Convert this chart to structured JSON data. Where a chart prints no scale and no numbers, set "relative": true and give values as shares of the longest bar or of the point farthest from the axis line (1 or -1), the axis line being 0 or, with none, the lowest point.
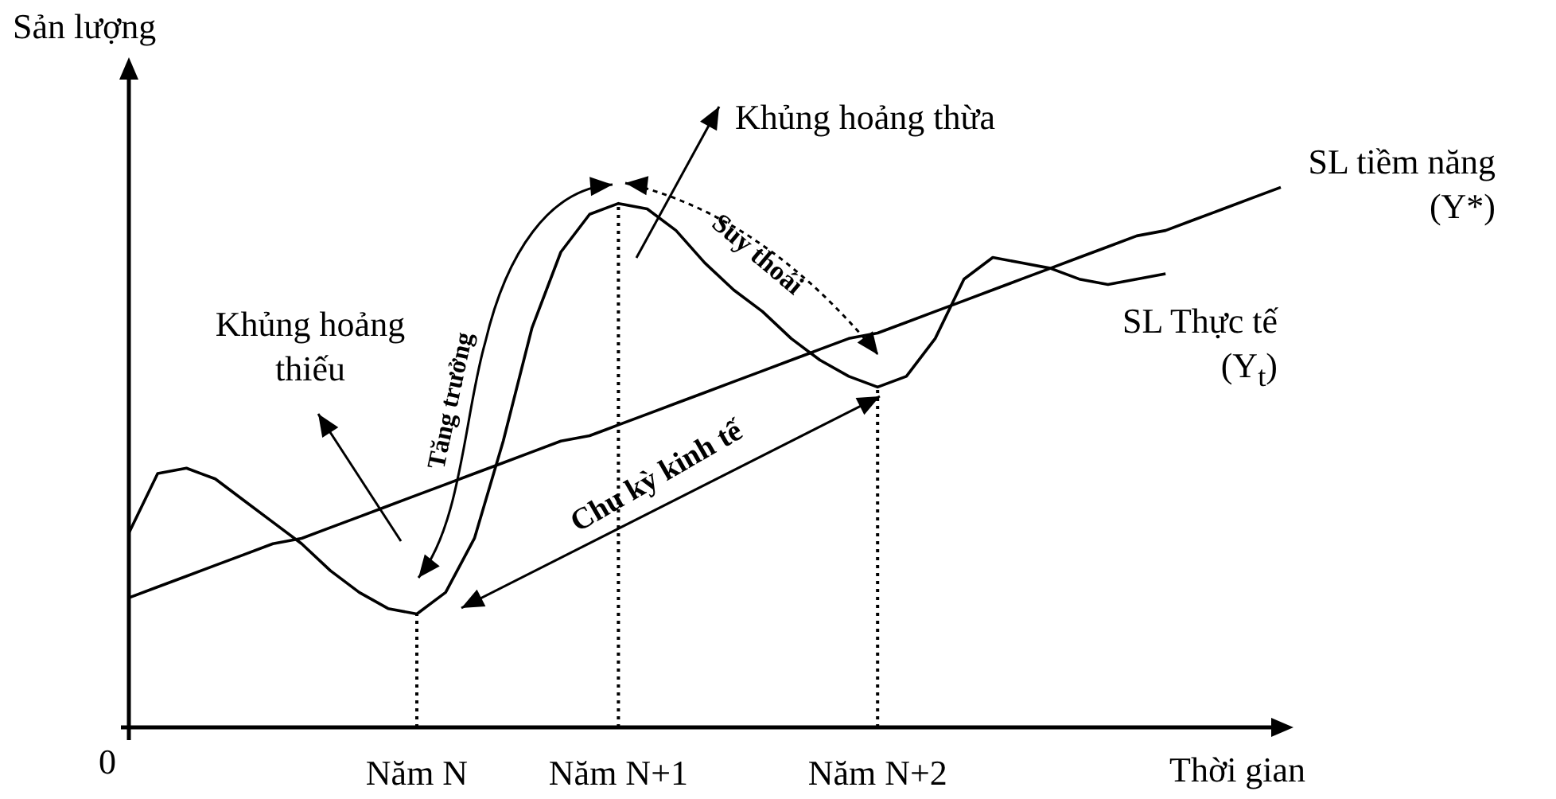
{
  "chart_data": {
    "type": "line",
    "xlabel": "Thời gian",
    "ylabel": "Sản lượng",
    "relative": true,
    "marker": "none",
    "categories": [
      null,
      null,
      null,
      null,
      null,
      null,
      null,
      null,
      null,
      null,
      "Năm N",
      null,
      null,
      null,
      null,
      null,
      null,
      "Năm N+1",
      null,
      null,
      null,
      null,
      null,
      null,
      null,
      null,
      "Năm N+2",
      null,
      null,
      null,
      null,
      null,
      null,
      null,
      null,
      null,
      null,
      null,
      null,
      null,
      null
    ],
    "series": [
      {
        "name": "SL Thực tế (Y$_{t}$)",
        "color": "#000000",
        "values": [
          0.36,
          0.47,
          0.48,
          0.46,
          0.42,
          0.38,
          0.34,
          0.29,
          0.25,
          0.22,
          0.21,
          0.25,
          0.35,
          0.53,
          0.74,
          0.88,
          0.95,
          0.97,
          0.96,
          0.92,
          0.86,
          0.81,
          0.77,
          0.72,
          0.68,
          0.65,
          0.63,
          0.65,
          0.72,
          0.83,
          0.87,
          0.86,
          0.85,
          0.83,
          0.82,
          0.83,
          0.84,
          null,
          null,
          null,
          null
        ]
      },
      {
        "name": "SL tiềm năng (Y*)",
        "color": "#000000",
        "values": [
          0.24,
          0.26,
          0.28,
          0.3,
          0.32,
          0.34,
          0.35,
          0.37,
          0.39,
          0.41,
          0.43,
          0.45,
          0.47,
          0.49,
          0.51,
          0.53,
          0.54,
          0.56,
          0.58,
          0.6,
          0.62,
          0.64,
          0.66,
          0.68,
          0.7,
          0.72,
          0.73,
          0.75,
          0.77,
          0.79,
          0.81,
          0.83,
          0.85,
          0.87,
          0.89,
          0.91,
          0.92,
          0.94,
          0.96,
          0.98,
          1
        ]
      }
    ],
    "ref_lines": [
      {
        "axis": "x",
        "value": "Năm N",
        "line_style": "dotted"
      },
      {
        "axis": "x",
        "value": "Năm N+1",
        "line_style": "dotted"
      },
      {
        "axis": "x",
        "value": "Năm N+2",
        "line_style": "dotted"
      }
    ],
    "annotations": [
      "0",
      "Khủng hoảng thiếu",
      "Khủng hoảng thừa",
      "Tăng trưởng",
      "Suy thoái",
      "Chu kỳ kinh tế"
    ]
  }
}
